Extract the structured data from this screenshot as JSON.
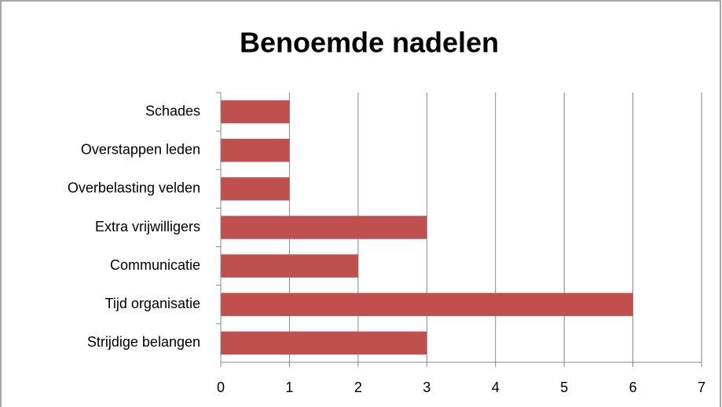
{
  "chart_data": {
    "type": "barh",
    "title": "Benoemde nadelen",
    "categories": [
      "Schades",
      "Overstappen leden",
      "Overbelasting velden",
      "Extra vrijwilligers",
      "Communicatie",
      "Tijd organisatie",
      "Strijdige belangen"
    ],
    "values": [
      1,
      1,
      1,
      3,
      2,
      6,
      3
    ],
    "color": "#c0504d",
    "xlim": [
      0,
      7
    ],
    "xticks": [
      0,
      1,
      2,
      3,
      4,
      5,
      6,
      7
    ],
    "grid": true
  }
}
